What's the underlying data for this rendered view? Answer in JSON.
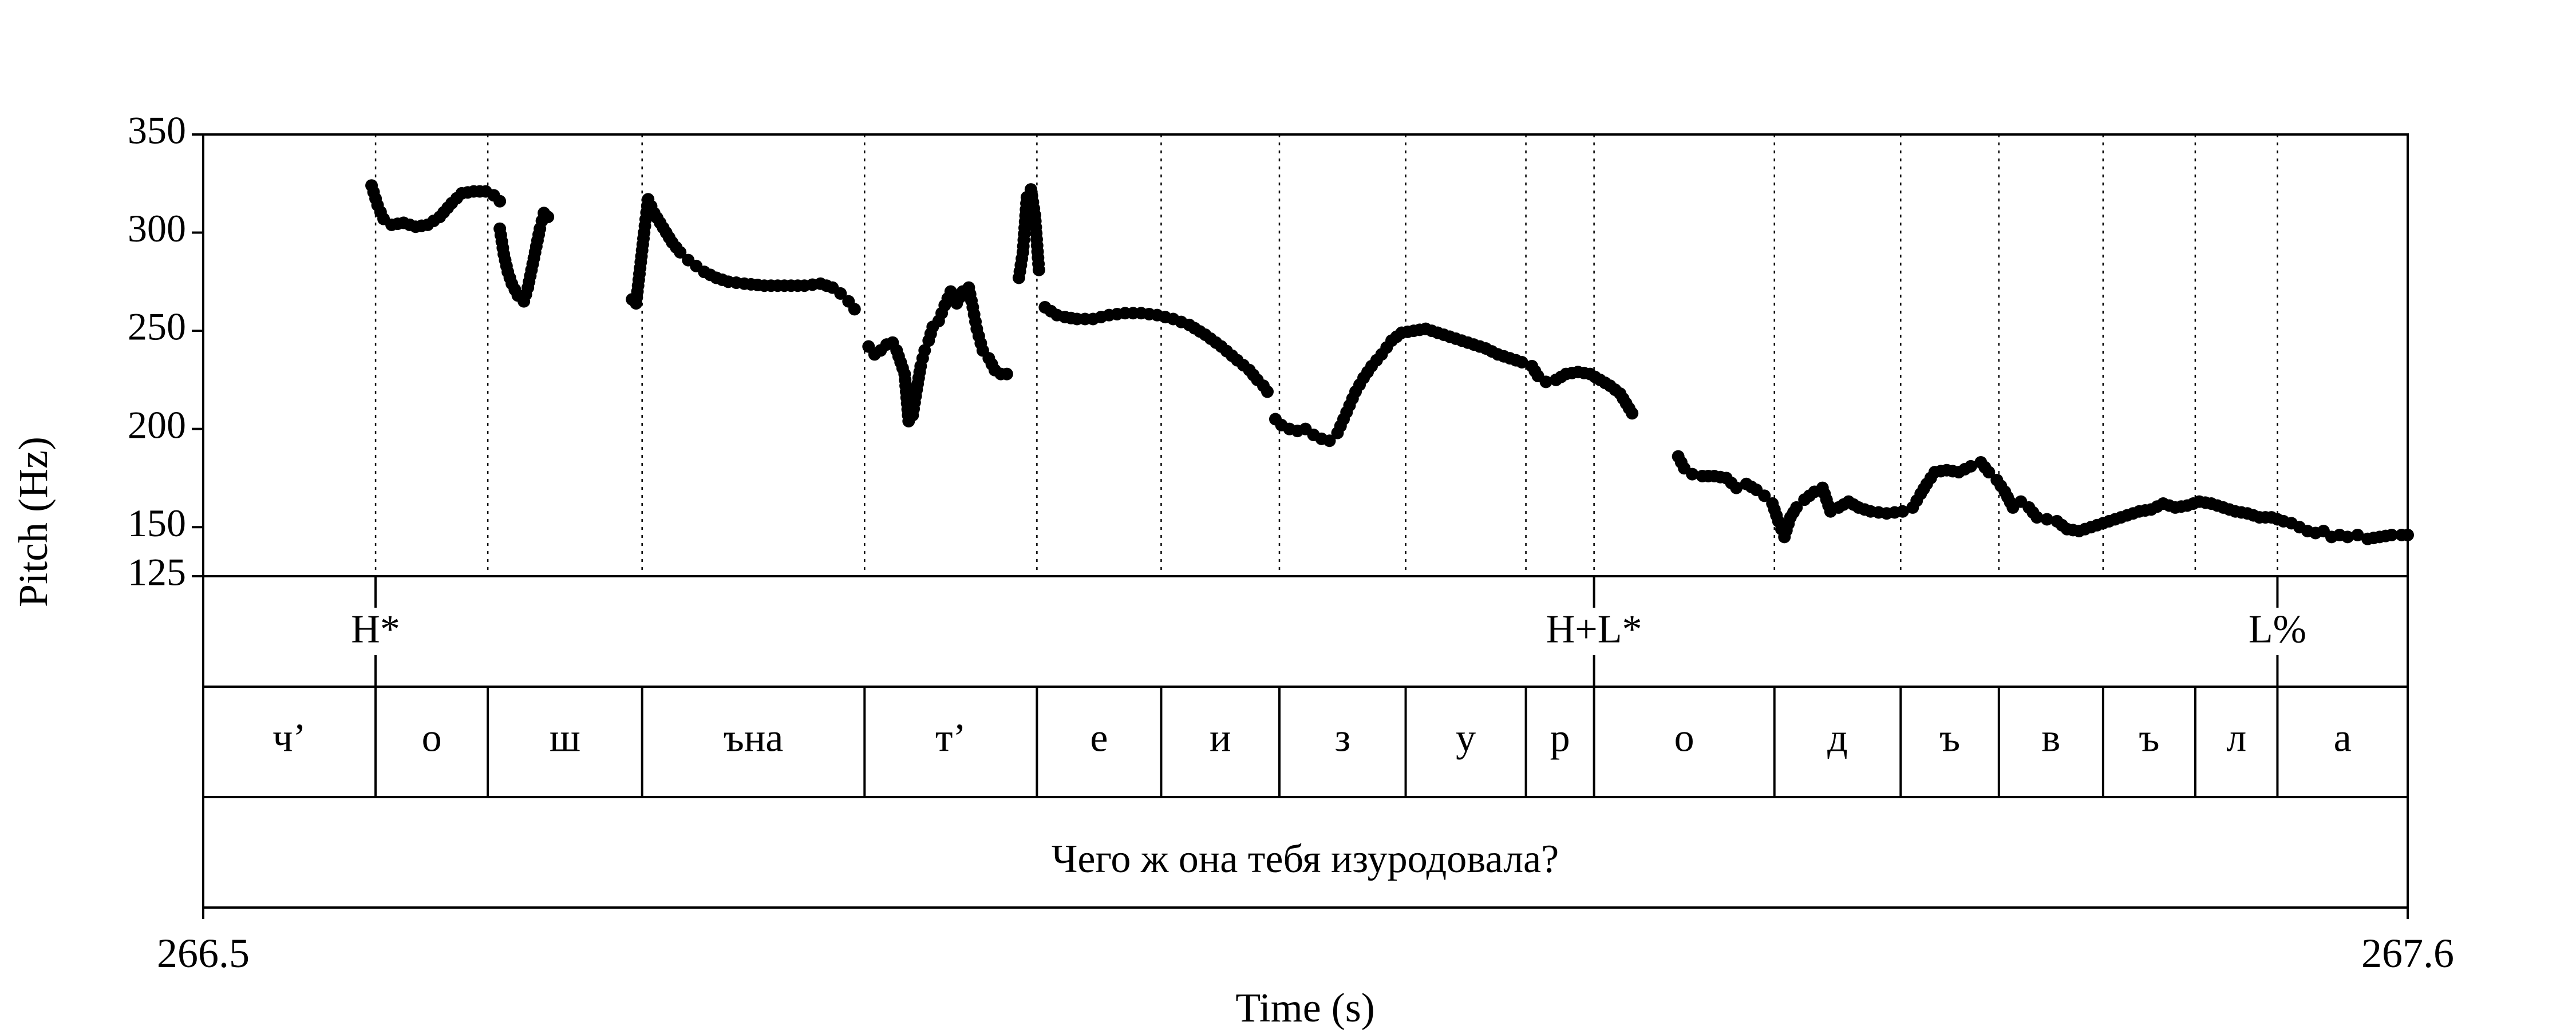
{
  "chart_data": {
    "type": "scatter",
    "ylabel": "Pitch (Hz)",
    "xlabel": "Time (s)",
    "xlim": [
      266.5,
      267.6
    ],
    "ylim": [
      125,
      350
    ],
    "xticks": [
      "266.5",
      "267.6"
    ],
    "yticks": [
      {
        "value": 350,
        "label": "350"
      },
      {
        "value": 300,
        "label": "300"
      },
      {
        "value": 250,
        "label": "250"
      },
      {
        "value": 200,
        "label": "200"
      },
      {
        "value": 150,
        "label": "150"
      },
      {
        "value": 125,
        "label": "125"
      }
    ],
    "grid": false,
    "tones": [
      {
        "t": 266.586,
        "label": "H*"
      },
      {
        "t": 267.194,
        "label": "H+L*"
      },
      {
        "t": 267.535,
        "label": "L%"
      }
    ],
    "segments": [
      {
        "start": 266.5,
        "end": 266.586,
        "label": "ч’"
      },
      {
        "start": 266.586,
        "end": 266.642,
        "label": "о"
      },
      {
        "start": 266.642,
        "end": 266.719,
        "label": "ш"
      },
      {
        "start": 266.719,
        "end": 266.83,
        "label": "ъна"
      },
      {
        "start": 266.83,
        "end": 266.916,
        "label": "т’"
      },
      {
        "start": 266.916,
        "end": 266.978,
        "label": "е"
      },
      {
        "start": 266.978,
        "end": 267.037,
        "label": "и"
      },
      {
        "start": 267.037,
        "end": 267.1,
        "label": "з"
      },
      {
        "start": 267.1,
        "end": 267.16,
        "label": "у"
      },
      {
        "start": 267.16,
        "end": 267.194,
        "label": "р"
      },
      {
        "start": 267.194,
        "end": 267.284,
        "label": "о"
      },
      {
        "start": 267.284,
        "end": 267.347,
        "label": "д"
      },
      {
        "start": 267.347,
        "end": 267.396,
        "label": "ъ"
      },
      {
        "start": 267.396,
        "end": 267.448,
        "label": "в"
      },
      {
        "start": 267.448,
        "end": 267.494,
        "label": "ъ"
      },
      {
        "start": 267.494,
        "end": 267.535,
        "label": "л"
      },
      {
        "start": 267.535,
        "end": 267.6,
        "label": "а"
      }
    ],
    "sentence": "Чего ж она тебя изуродовала?",
    "pitch_contour": [
      [
        [
          266.584,
          324
        ],
        [
          266.587,
          314
        ],
        [
          266.59,
          307
        ],
        [
          266.594,
          304
        ],
        [
          266.6,
          305
        ],
        [
          266.606,
          303
        ],
        [
          266.612,
          304
        ],
        [
          266.618,
          308
        ],
        [
          266.624,
          315
        ],
        [
          266.629,
          320
        ],
        [
          266.635,
          321
        ],
        [
          266.641,
          321
        ],
        [
          266.645,
          319
        ],
        [
          266.648,
          316
        ]
      ],
      [
        [
          266.648,
          302
        ],
        [
          266.65,
          289
        ],
        [
          266.652,
          280
        ],
        [
          266.654,
          274
        ],
        [
          266.657,
          268
        ],
        [
          266.66,
          265
        ],
        [
          266.662,
          272
        ],
        [
          266.665,
          287
        ],
        [
          266.668,
          302
        ],
        [
          266.67,
          310
        ],
        [
          266.672,
          308
        ]
      ],
      [
        [
          266.714,
          266
        ],
        [
          266.716,
          264
        ],
        [
          266.718,
          282
        ],
        [
          266.72,
          300
        ],
        [
          266.722,
          317
        ],
        [
          266.725,
          310
        ],
        [
          266.728,
          305
        ],
        [
          266.731,
          300
        ],
        [
          266.734,
          295
        ],
        [
          266.738,
          290
        ],
        [
          266.742,
          286
        ],
        [
          266.746,
          283
        ],
        [
          266.75,
          280
        ],
        [
          266.756,
          277
        ],
        [
          266.762,
          275
        ],
        [
          266.77,
          274
        ],
        [
          266.78,
          273
        ],
        [
          266.79,
          273
        ],
        [
          266.8,
          273
        ],
        [
          266.808,
          274
        ],
        [
          266.814,
          272
        ],
        [
          266.818,
          269
        ],
        [
          266.822,
          265
        ],
        [
          266.825,
          261
        ]
      ],
      [
        [
          266.832,
          242
        ],
        [
          266.835,
          238
        ],
        [
          266.838,
          240
        ],
        [
          266.841,
          243
        ],
        [
          266.844,
          244
        ],
        [
          266.846,
          240
        ],
        [
          266.848,
          234
        ],
        [
          266.85,
          228
        ],
        [
          266.852,
          204
        ],
        [
          266.854,
          207
        ],
        [
          266.856,
          220
        ],
        [
          266.858,
          232
        ],
        [
          266.86,
          240
        ],
        [
          266.862,
          245
        ],
        [
          266.864,
          252
        ],
        [
          266.867,
          255
        ],
        [
          266.87,
          263
        ],
        [
          266.873,
          270
        ],
        [
          266.876,
          264
        ],
        [
          266.879,
          270
        ],
        [
          266.882,
          272
        ],
        [
          266.884,
          262
        ],
        [
          266.886,
          251
        ],
        [
          266.889,
          240
        ],
        [
          266.892,
          236
        ],
        [
          266.895,
          230
        ],
        [
          266.898,
          228
        ],
        [
          266.901,
          228
        ]
      ],
      [
        [
          266.907,
          277
        ],
        [
          266.909,
          290
        ],
        [
          266.911,
          318
        ],
        [
          266.913,
          322
        ],
        [
          266.915,
          309
        ],
        [
          266.917,
          281
        ]
      ],
      [
        [
          266.92,
          262
        ],
        [
          266.923,
          260
        ],
        [
          266.926,
          258
        ],
        [
          266.93,
          257
        ],
        [
          266.936,
          256
        ],
        [
          266.944,
          256
        ],
        [
          266.952,
          258
        ],
        [
          266.96,
          259
        ],
        [
          266.968,
          259
        ],
        [
          266.976,
          258
        ],
        [
          266.984,
          256
        ],
        [
          266.992,
          253
        ],
        [
          267.0,
          248
        ],
        [
          267.008,
          242
        ],
        [
          267.016,
          235
        ],
        [
          267.022,
          230
        ],
        [
          267.026,
          225
        ],
        [
          267.029,
          222
        ],
        [
          267.031,
          219
        ]
      ],
      [
        [
          267.035,
          205
        ],
        [
          267.038,
          202
        ],
        [
          267.042,
          200
        ],
        [
          267.046,
          199
        ],
        [
          267.05,
          200
        ],
        [
          267.054,
          197
        ],
        [
          267.058,
          195
        ],
        [
          267.062,
          194
        ],
        [
          267.066,
          198
        ],
        [
          267.069,
          205
        ],
        [
          267.072,
          212
        ],
        [
          267.075,
          219
        ],
        [
          267.079,
          226
        ],
        [
          267.083,
          232
        ],
        [
          267.088,
          238
        ],
        [
          267.093,
          245
        ],
        [
          267.098,
          249
        ],
        [
          267.104,
          250
        ],
        [
          267.11,
          251
        ],
        [
          267.116,
          249
        ],
        [
          267.122,
          247
        ],
        [
          267.128,
          245
        ],
        [
          267.134,
          243
        ],
        [
          267.14,
          241
        ],
        [
          267.146,
          238
        ],
        [
          267.152,
          236
        ],
        [
          267.158,
          234
        ],
        [
          267.163,
          232
        ],
        [
          267.166,
          227
        ],
        [
          267.17,
          224
        ],
        [
          267.175,
          225
        ],
        [
          267.18,
          228
        ],
        [
          267.186,
          229
        ],
        [
          267.192,
          228
        ],
        [
          267.197,
          225
        ],
        [
          267.202,
          222
        ],
        [
          267.207,
          218
        ],
        [
          267.21,
          213
        ],
        [
          267.213,
          208
        ]
      ],
      [
        [
          267.236,
          186
        ],
        [
          267.239,
          180
        ],
        [
          267.243,
          177
        ],
        [
          267.248,
          176
        ],
        [
          267.254,
          176
        ],
        [
          267.26,
          175
        ],
        [
          267.265,
          170
        ],
        [
          267.27,
          172
        ],
        [
          267.275,
          169
        ],
        [
          267.279,
          166
        ],
        [
          267.283,
          162
        ],
        [
          267.286,
          153
        ],
        [
          267.289,
          145
        ],
        [
          267.292,
          155
        ],
        [
          267.295,
          160
        ],
        [
          267.299,
          164
        ],
        [
          267.304,
          168
        ],
        [
          267.308,
          170
        ],
        [
          267.312,
          158
        ],
        [
          267.316,
          160
        ],
        [
          267.321,
          163
        ],
        [
          267.326,
          160
        ],
        [
          267.332,
          158
        ],
        [
          267.34,
          157
        ],
        [
          267.348,
          158
        ],
        [
          267.353,
          160
        ],
        [
          267.357,
          167
        ],
        [
          267.36,
          172
        ],
        [
          267.364,
          178
        ],
        [
          267.37,
          179
        ],
        [
          267.376,
          178
        ],
        [
          267.382,
          181
        ],
        [
          267.387,
          183
        ],
        [
          267.391,
          178
        ],
        [
          267.395,
          174
        ],
        [
          267.399,
          168
        ],
        [
          267.403,
          160
        ],
        [
          267.407,
          163
        ],
        [
          267.411,
          160
        ],
        [
          267.415,
          155
        ],
        [
          267.42,
          154
        ],
        [
          267.425,
          153
        ],
        [
          267.43,
          149
        ],
        [
          267.436,
          148
        ],
        [
          267.442,
          150
        ],
        [
          267.448,
          152
        ],
        [
          267.454,
          154
        ],
        [
          267.46,
          156
        ],
        [
          267.466,
          158
        ],
        [
          267.472,
          159
        ],
        [
          267.478,
          162
        ],
        [
          267.484,
          160
        ],
        [
          267.49,
          161
        ],
        [
          267.496,
          163
        ],
        [
          267.502,
          162
        ],
        [
          267.508,
          160
        ],
        [
          267.514,
          158
        ],
        [
          267.52,
          157
        ],
        [
          267.526,
          155
        ],
        [
          267.532,
          155
        ],
        [
          267.538,
          153
        ],
        [
          267.542,
          152
        ],
        [
          267.546,
          150
        ],
        [
          267.55,
          148
        ],
        [
          267.554,
          147
        ],
        [
          267.558,
          148
        ],
        [
          267.562,
          145
        ],
        [
          267.566,
          146
        ],
        [
          267.57,
          145
        ],
        [
          267.575,
          146
        ],
        [
          267.58,
          144
        ],
        [
          267.586,
          145
        ],
        [
          267.592,
          146
        ],
        [
          267.597,
          146
        ],
        [
          267.6,
          146
        ]
      ]
    ]
  }
}
